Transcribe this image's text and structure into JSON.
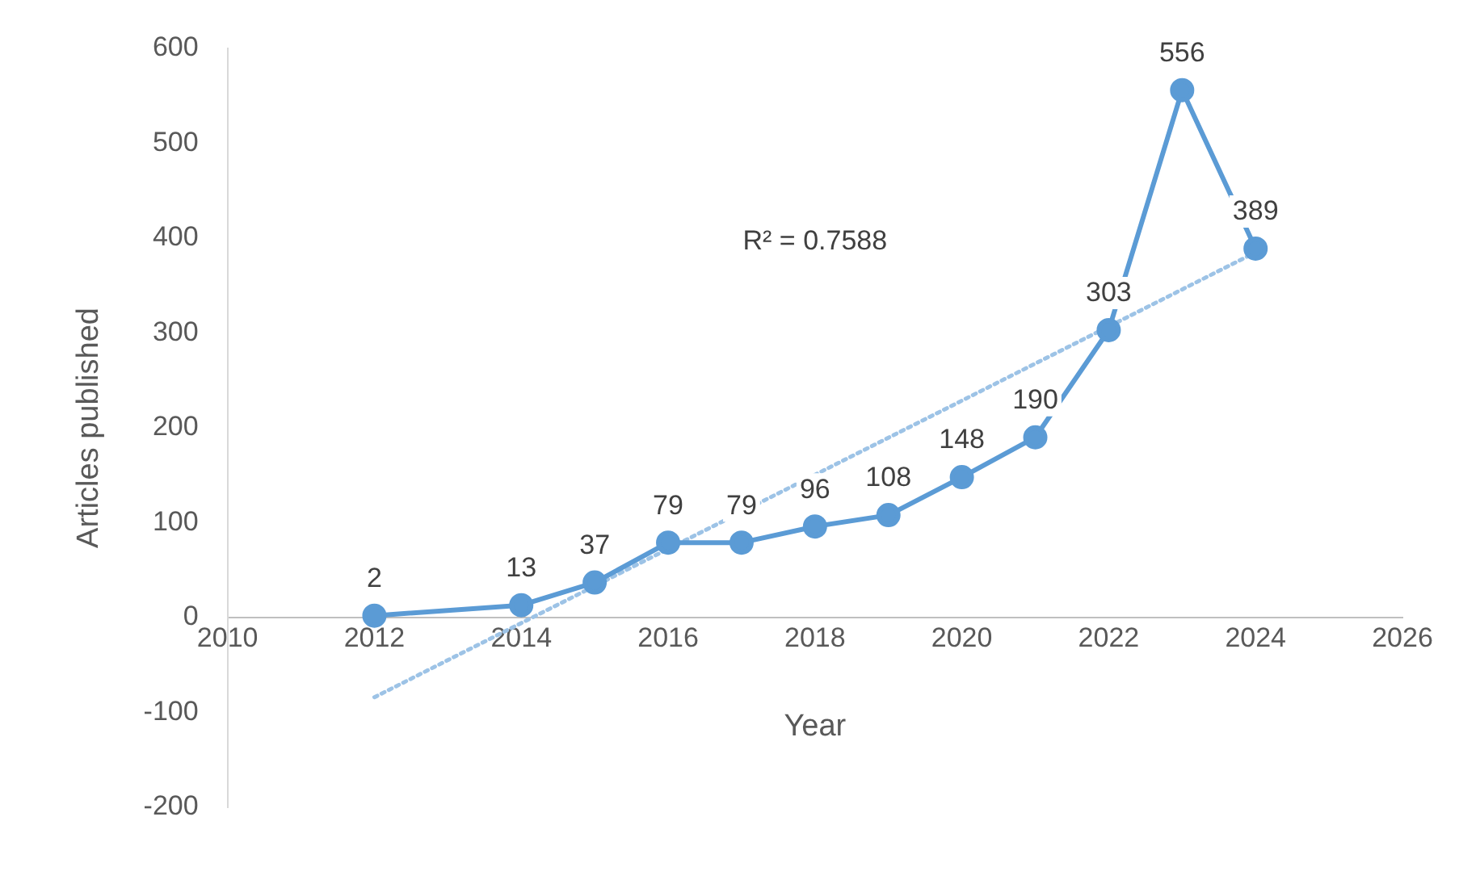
{
  "chart_data": {
    "type": "line",
    "xlabel": "Year",
    "ylabel": "Articles published",
    "x": [
      2012,
      2014,
      2015,
      2016,
      2017,
      2018,
      2019,
      2020,
      2021,
      2022,
      2023,
      2024
    ],
    "series": [
      {
        "color": "#5b9bd5",
        "marker": "circle",
        "line_style": "solid",
        "values": [
          2,
          13,
          37,
          79,
          79,
          96,
          108,
          148,
          190,
          303,
          556,
          389
        ],
        "value_labels": [
          "2",
          "13",
          "37",
          "79",
          "79",
          "96",
          "108",
          "148",
          "190",
          "303",
          "556",
          "389"
        ]
      },
      {
        "type": "line",
        "color": "#9dc3e6",
        "marker": "none",
        "line_style": "dotted",
        "x": [
          2012,
          2024
        ],
        "values": [
          -84,
          385
        ]
      }
    ],
    "annotations": [
      "R² = 0.7588"
    ],
    "xlim": [
      2010,
      2026
    ],
    "xticks": [
      2010,
      2012,
      2014,
      2016,
      2018,
      2020,
      2022,
      2024,
      2026
    ],
    "ylim": [
      -200,
      600
    ],
    "yticks": [
      -200,
      -100,
      0,
      100,
      200,
      300,
      400,
      500,
      600
    ],
    "grid": false,
    "legend": false
  }
}
